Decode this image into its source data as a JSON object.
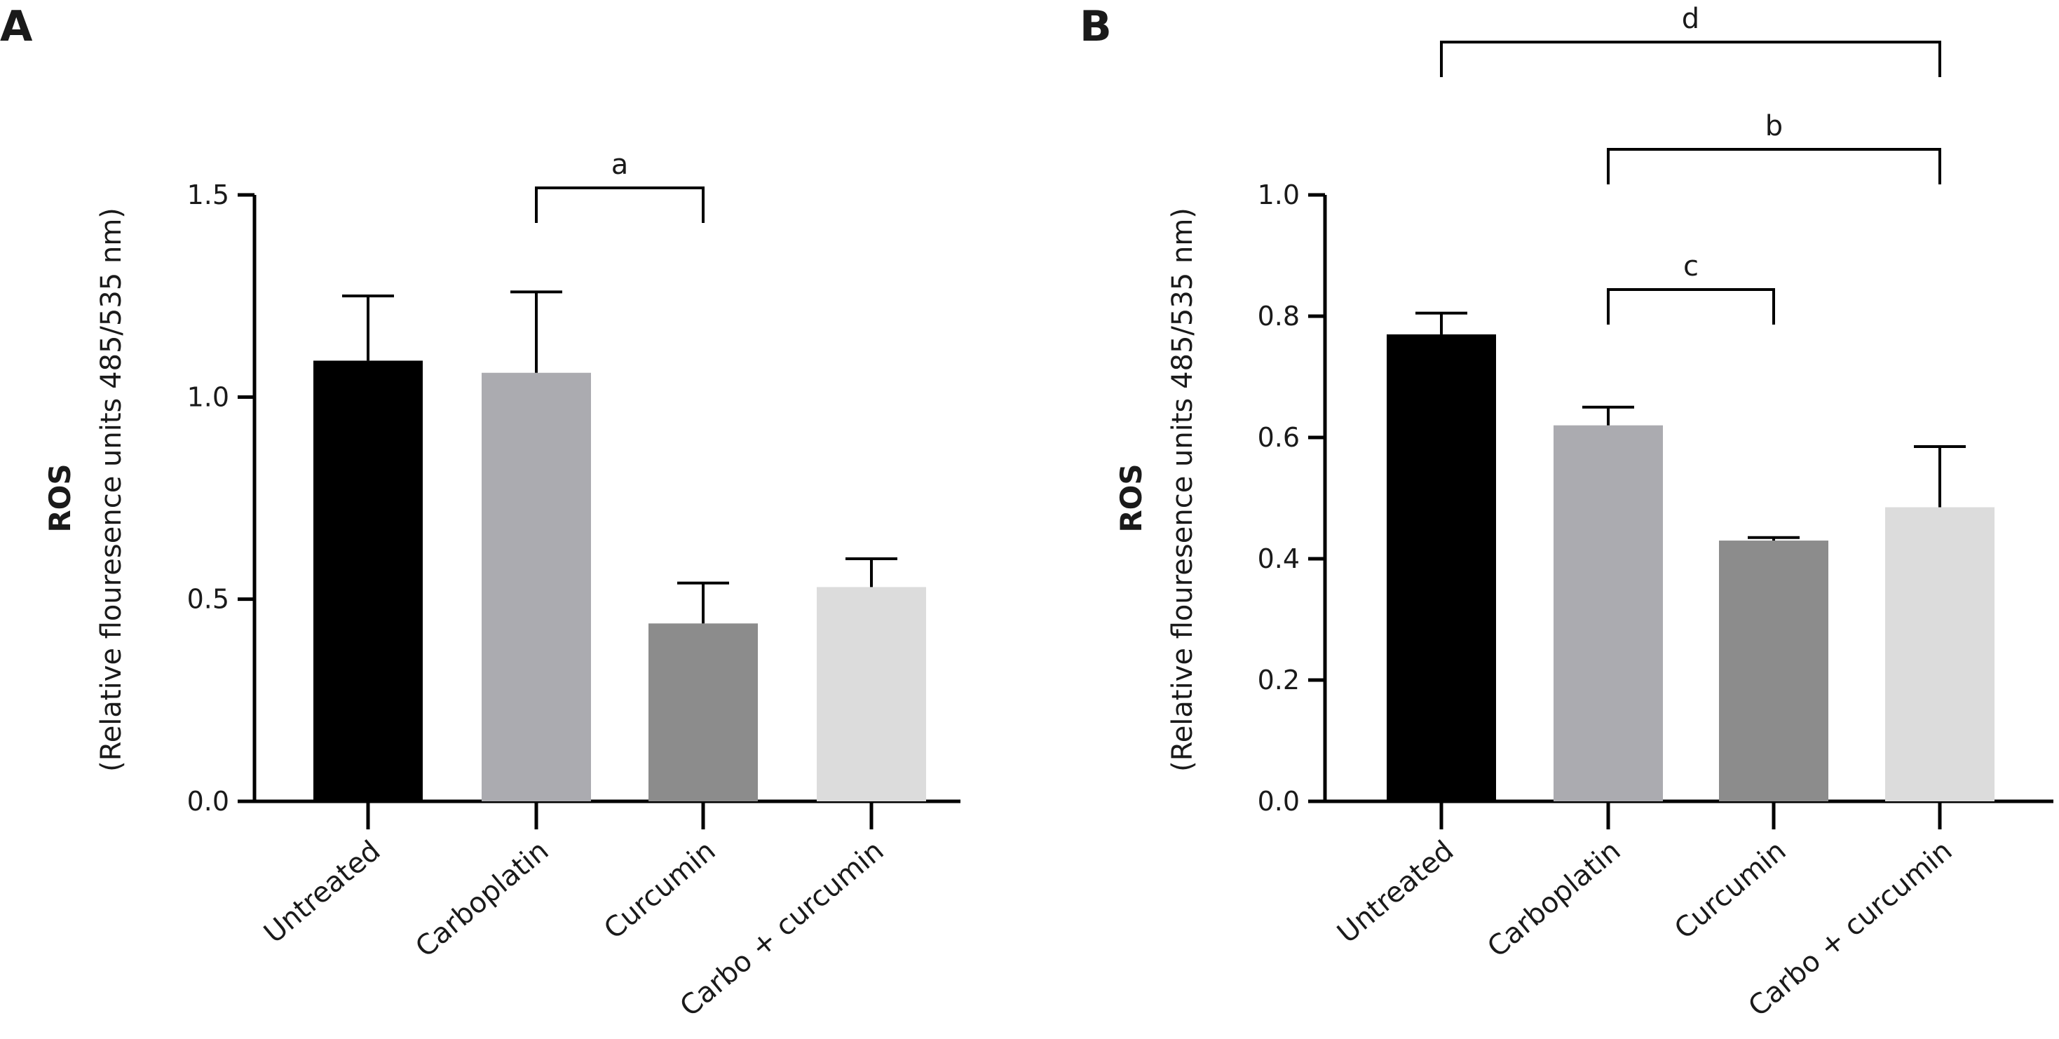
{
  "chart_data": [
    {
      "panel": "A",
      "type": "bar",
      "categories": [
        "Untreated",
        "Carboplatin",
        "Curcumin",
        "Carbo + curcumin"
      ],
      "values": [
        1.09,
        1.06,
        0.44,
        0.53
      ],
      "errors": [
        0.16,
        0.2,
        0.1,
        0.07
      ],
      "colors": [
        "#000000",
        "#ababb0",
        "#8c8c8c",
        "#dcdcdc"
      ],
      "ylabel": "ROS",
      "ylabel_sub": "(Relative flouresence units 485/535 nm)",
      "ylim": [
        0,
        1.5
      ],
      "yticks": [
        0,
        0.5,
        1.0,
        1.5
      ],
      "ytick_labels": [
        "0.0",
        "0.5",
        "1.0",
        "1.5"
      ],
      "significance": [
        {
          "label": "a",
          "from": 1,
          "to": 2
        }
      ]
    },
    {
      "panel": "B",
      "type": "bar",
      "categories": [
        "Untreated",
        "Carboplatin",
        "Curcumin",
        "Carbo + curcumin"
      ],
      "values": [
        0.77,
        0.62,
        0.43,
        0.485
      ],
      "errors": [
        0.035,
        0.03,
        0.005,
        0.1
      ],
      "colors": [
        "#000000",
        "#ababb0",
        "#8c8c8c",
        "#dcdcdc"
      ],
      "ylabel": "ROS",
      "ylabel_sub": "(Relative flouresence units 485/535 nm)",
      "ylim": [
        0,
        1.0
      ],
      "yticks": [
        0,
        0.2,
        0.4,
        0.6,
        0.8,
        1.0
      ],
      "ytick_labels": [
        "0.0",
        "0.2",
        "0.4",
        "0.6",
        "0.8",
        "1.0"
      ],
      "significance": [
        {
          "label": "d",
          "from": 0,
          "to": 3
        },
        {
          "label": "b",
          "from": 1,
          "to": 3
        },
        {
          "label": "c",
          "from": 1,
          "to": 2
        }
      ]
    }
  ]
}
